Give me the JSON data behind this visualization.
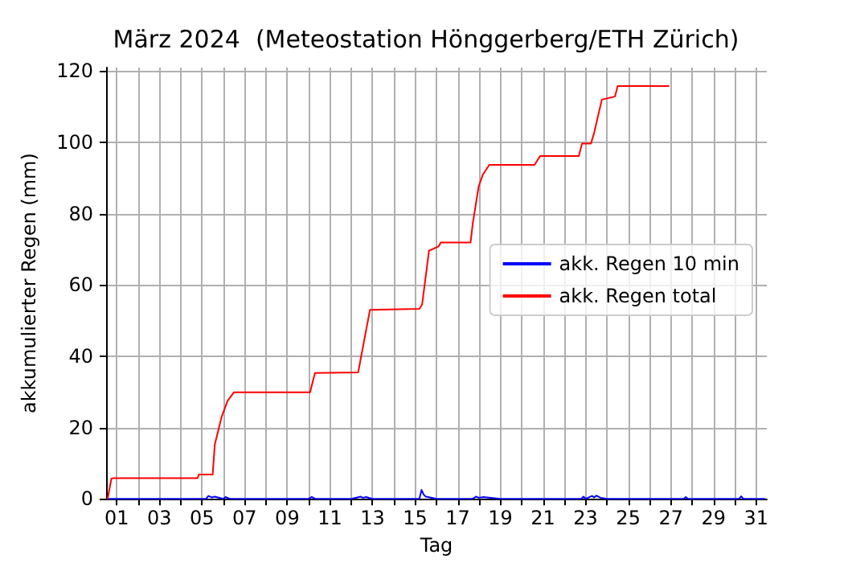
{
  "chart_data": {
    "type": "line",
    "title": "März 2024  (Meteostation Hönggerberg/ETH Zürich)",
    "xlabel": "Tag",
    "ylabel": "akkumulierter Regen (mm)",
    "series": [
      {
        "name": "akk. Regen 10 min",
        "color": "#0000ff",
        "x": [
          0.57,
          1,
          2,
          3,
          4,
          5,
          5.2,
          5.3,
          5.45,
          5.6,
          6,
          6.1,
          6.3,
          7,
          8,
          9,
          10,
          10.15,
          10.3,
          11,
          12,
          12.45,
          12.55,
          12.7,
          13,
          14,
          15,
          15.2,
          15.3,
          15.4,
          15.5,
          15.7,
          16,
          17,
          17.7,
          17.85,
          18,
          18.2,
          19,
          20,
          21,
          22,
          22.8,
          22.9,
          23,
          23.3,
          23.4,
          23.5,
          23.7,
          24,
          25,
          26,
          27,
          27.6,
          27.7,
          27.8,
          29,
          30.2,
          30.3,
          30.4,
          31.4
        ],
        "values": [
          0,
          0,
          0,
          0,
          0,
          0,
          0,
          0.8,
          0.4,
          0.6,
          0,
          0.5,
          0,
          0,
          0,
          0,
          0,
          0.5,
          0,
          0,
          0,
          0.6,
          0.3,
          0.5,
          0,
          0,
          0,
          0,
          2.5,
          1.2,
          0.6,
          0.4,
          0,
          0,
          0,
          0.6,
          0.3,
          0.5,
          0,
          0,
          0,
          0,
          0,
          0.6,
          0,
          0.8,
          0.4,
          0.9,
          0.3,
          0,
          0,
          0,
          0,
          0,
          0.5,
          0,
          0,
          0,
          0.7,
          0,
          0
        ]
      },
      {
        "name": "akk. Regen total",
        "color": "#ff0000",
        "x": [
          0.57,
          0.75,
          0.85,
          4.79,
          4.85,
          5.5,
          5.6,
          5.92,
          6.2,
          6.5,
          10.07,
          10.3,
          12.33,
          12.5,
          12.88,
          15.2,
          15.33,
          15.65,
          16.1,
          16.2,
          17.6,
          17.7,
          17.98,
          18.18,
          18.48,
          20.6,
          20.87,
          22.68,
          22.83,
          23.25,
          23.4,
          23.76,
          24.38,
          24.5,
          26.9
        ],
        "values": [
          0,
          5.7,
          5.8,
          5.8,
          6.8,
          6.8,
          15.2,
          23,
          27.5,
          29.9,
          29.9,
          35.3,
          35.5,
          41,
          53,
          53.3,
          54.6,
          69.6,
          70.8,
          71.9,
          71.9,
          77.1,
          87.6,
          91,
          93.7,
          93.7,
          96.2,
          96.2,
          99.7,
          99.7,
          102.7,
          112,
          112.9,
          115.8,
          115.8
        ]
      }
    ],
    "xlim": [
      0.5,
      31.5
    ],
    "xticks": [
      {
        "value": 1,
        "label": "01"
      },
      {
        "value": 2,
        "label": null
      },
      {
        "value": 3,
        "label": "03"
      },
      {
        "value": 4,
        "label": null
      },
      {
        "value": 5,
        "label": "05"
      },
      {
        "value": 6,
        "label": null
      },
      {
        "value": 7,
        "label": "07"
      },
      {
        "value": 8,
        "label": null
      },
      {
        "value": 9,
        "label": "09"
      },
      {
        "value": 10,
        "label": null
      },
      {
        "value": 11,
        "label": "11"
      },
      {
        "value": 12,
        "label": null
      },
      {
        "value": 13,
        "label": "13"
      },
      {
        "value": 14,
        "label": null
      },
      {
        "value": 15,
        "label": "15"
      },
      {
        "value": 16,
        "label": null
      },
      {
        "value": 17,
        "label": "17"
      },
      {
        "value": 18,
        "label": null
      },
      {
        "value": 19,
        "label": "19"
      },
      {
        "value": 20,
        "label": null
      },
      {
        "value": 21,
        "label": "21"
      },
      {
        "value": 22,
        "label": null
      },
      {
        "value": 23,
        "label": "23"
      },
      {
        "value": 24,
        "label": null
      },
      {
        "value": 25,
        "label": "25"
      },
      {
        "value": 26,
        "label": null
      },
      {
        "value": 27,
        "label": "27"
      },
      {
        "value": 28,
        "label": null
      },
      {
        "value": 29,
        "label": "29"
      },
      {
        "value": 30,
        "label": null
      },
      {
        "value": 31,
        "label": "31"
      }
    ],
    "ylim": [
      0,
      121
    ],
    "yticks": [
      0,
      20,
      40,
      60,
      80,
      100,
      120
    ],
    "grid": true,
    "legend": "right",
    "marker": "none",
    "line_style": "solid"
  }
}
